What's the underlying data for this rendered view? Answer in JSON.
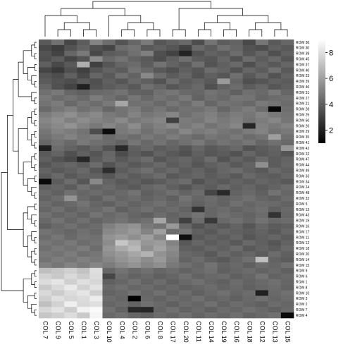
{
  "chart_data": {
    "type": "heatmap",
    "title": "",
    "xlabel": "",
    "ylabel": "",
    "columns": [
      "COL 7",
      "COL 9",
      "COL 5",
      "COL 1",
      "COL 3",
      "COL 10",
      "COL 4",
      "COL 2",
      "COL 6",
      "COL 8",
      "COL 17",
      "COL 20",
      "COL 11",
      "COL 14",
      "COL 19",
      "COL 16",
      "COL 18",
      "COL 12",
      "COL 13",
      "COL 15"
    ],
    "rows": [
      "ROW 36",
      "ROW 30",
      "ROW 38",
      "ROW 45",
      "ROW 37",
      "ROW 40",
      "ROW 23",
      "ROW 39",
      "ROW 46",
      "ROW 31",
      "ROW 27",
      "ROW 21",
      "ROW 28",
      "ROW 25",
      "ROW 50",
      "ROW 26",
      "ROW 29",
      "ROW 35",
      "ROW 41",
      "ROW 42",
      "ROW 22",
      "ROW 47",
      "ROW 44",
      "ROW 49",
      "ROW 33",
      "ROW 34",
      "ROW 24",
      "ROW 48",
      "ROW 32",
      "ROW 5",
      "ROW 13",
      "ROW 43",
      "ROW 19",
      "ROW 16",
      "ROW 17",
      "ROW 11",
      "ROW 12",
      "ROW 18",
      "ROW 20",
      "ROW 14",
      "ROW 15",
      "ROW 9",
      "ROW 6",
      "ROW 1",
      "ROW 8",
      "ROW 10",
      "ROW 3",
      "ROW 2",
      "ROW 7",
      "ROW 4"
    ],
    "value_range": [
      1,
      9
    ],
    "colorscale": {
      "low": "#000000",
      "high": "#ffffff"
    },
    "legend": {
      "placement": "top-right",
      "ticks": [
        2,
        4,
        6,
        8
      ]
    },
    "row_dendrogram": "left",
    "col_dendrogram": "top",
    "values": [
      [
        3.8,
        4.5,
        3.2,
        3.9,
        5.1,
        4.4,
        3.6,
        4.2,
        4.8,
        3.7,
        4.0,
        4.3,
        3.4,
        4.6,
        3.9,
        4.1,
        3.3,
        4.7,
        3.8,
        4.2
      ],
      [
        3.3,
        2.9,
        3.6,
        4.1,
        3.5,
        3.2,
        4.4,
        4.6,
        3.8,
        4.0,
        3.7,
        3.1,
        4.3,
        3.9,
        4.5,
        4.2,
        3.6,
        3.4,
        4.0,
        3.8
      ],
      [
        3.6,
        3.1,
        4.2,
        4.8,
        3.3,
        3.9,
        4.0,
        4.5,
        5.0,
        3.5,
        3.1,
        2.1,
        3.6,
        4.1,
        3.9,
        4.4,
        3.7,
        4.2,
        3.5,
        4.0
      ],
      [
        3.5,
        3.9,
        3.2,
        3.6,
        5.4,
        4.3,
        4.6,
        4.1,
        3.8,
        3.4,
        4.0,
        4.5,
        3.9,
        3.7,
        4.2,
        3.6,
        4.4,
        3.9,
        4.3,
        3.7
      ],
      [
        4.0,
        3.3,
        3.8,
        6.5,
        3.0,
        3.7,
        4.2,
        4.4,
        3.9,
        4.6,
        4.1,
        3.8,
        4.5,
        3.6,
        4.0,
        4.3,
        3.5,
        4.1,
        3.8,
        4.2
      ],
      [
        3.2,
        2.8,
        3.5,
        3.0,
        3.7,
        4.1,
        3.9,
        4.6,
        4.3,
        3.8,
        3.5,
        4.0,
        3.7,
        4.4,
        4.1,
        3.6,
        4.2,
        3.9,
        4.5,
        3.8
      ],
      [
        3.7,
        3.4,
        4.0,
        3.3,
        4.2,
        3.8,
        4.5,
        4.1,
        5.3,
        4.4,
        3.9,
        4.2,
        3.6,
        4.0,
        3.7,
        4.5,
        3.8,
        4.3,
        3.6,
        4.1
      ],
      [
        3.9,
        3.6,
        3.4,
        3.8,
        3.5,
        4.0,
        3.7,
        4.3,
        4.0,
        3.6,
        4.4,
        3.9,
        4.1,
        3.8,
        5.8,
        4.2,
        3.5,
        3.7,
        4.0,
        3.9
      ],
      [
        4.2,
        3.5,
        3.1,
        2.0,
        3.6,
        3.9,
        4.1,
        3.8,
        4.5,
        4.2,
        3.7,
        4.0,
        4.3,
        3.5,
        4.1,
        4.4,
        3.9,
        4.2,
        3.7,
        4.0
      ],
      [
        4.5,
        4.8,
        4.2,
        4.0,
        4.3,
        4.4,
        4.6,
        4.1,
        4.0,
        4.5,
        4.7,
        4.3,
        4.2,
        4.6,
        4.4,
        4.0,
        4.5,
        4.3,
        4.8,
        4.2
      ],
      [
        4.8,
        4.4,
        4.6,
        4.3,
        4.9,
        4.5,
        4.2,
        4.7,
        4.3,
        4.6,
        4.4,
        4.8,
        4.1,
        4.5,
        4.3,
        4.7,
        4.6,
        4.2,
        4.4,
        4.5
      ],
      [
        4.6,
        4.9,
        4.3,
        4.7,
        4.4,
        4.8,
        6.2,
        4.5,
        4.6,
        4.3,
        4.7,
        4.4,
        4.9,
        4.2,
        4.6,
        4.5,
        4.3,
        4.8,
        4.6,
        4.4
      ],
      [
        4.3,
        4.7,
        5.0,
        4.5,
        4.8,
        4.2,
        4.6,
        4.9,
        4.4,
        4.7,
        4.3,
        4.6,
        4.5,
        4.8,
        4.2,
        4.6,
        4.9,
        4.4,
        1.2,
        4.5
      ],
      [
        4.9,
        5.2,
        5.5,
        5.0,
        5.3,
        4.8,
        4.6,
        5.1,
        4.7,
        4.9,
        5.2,
        4.5,
        4.8,
        5.0,
        4.6,
        4.9,
        4.7,
        5.1,
        4.8,
        4.6
      ],
      [
        5.2,
        5.5,
        5.0,
        5.4,
        5.1,
        4.9,
        5.3,
        4.8,
        5.0,
        5.2,
        3.0,
        4.9,
        4.7,
        5.1,
        4.8,
        5.0,
        4.6,
        4.9,
        5.2,
        4.7
      ],
      [
        5.0,
        5.3,
        5.6,
        5.1,
        4.8,
        5.2,
        4.9,
        5.4,
        4.7,
        5.0,
        5.3,
        4.8,
        5.1,
        4.6,
        4.9,
        5.2,
        2.2,
        5.0,
        4.8,
        5.1
      ],
      [
        4.7,
        5.1,
        4.9,
        4.6,
        3.4,
        1.4,
        4.8,
        5.0,
        4.5,
        4.9,
        4.6,
        5.2,
        4.8,
        5.0,
        4.7,
        4.5,
        4.9,
        5.1,
        4.6,
        4.8
      ],
      [
        4.5,
        4.8,
        5.1,
        4.7,
        4.9,
        4.3,
        4.6,
        4.4,
        4.8,
        4.5,
        4.9,
        4.6,
        4.3,
        4.7,
        4.5,
        4.8,
        4.4,
        4.6,
        6.0,
        4.5
      ],
      [
        4.2,
        4.6,
        4.3,
        4.8,
        4.5,
        4.4,
        4.1,
        4.7,
        4.3,
        4.6,
        4.2,
        4.5,
        4.8,
        4.3,
        4.6,
        4.4,
        4.7,
        4.2,
        4.5,
        4.3
      ],
      [
        2.0,
        4.4,
        4.1,
        3.8,
        4.2,
        3.6,
        2.3,
        4.0,
        4.3,
        3.9,
        4.1,
        3.7,
        4.2,
        3.8,
        4.0,
        4.3,
        3.6,
        3.9,
        4.1,
        5.7
      ],
      [
        3.8,
        4.1,
        3.5,
        4.0,
        3.7,
        4.2,
        3.4,
        3.9,
        3.6,
        4.1,
        3.8,
        3.5,
        4.0,
        3.7,
        3.9,
        3.6,
        4.2,
        3.8,
        4.0,
        3.7
      ],
      [
        4.0,
        3.6,
        3.3,
        2.2,
        3.9,
        4.3,
        3.8,
        4.1,
        4.4,
        3.7,
        4.0,
        4.2,
        3.9,
        4.4,
        3.6,
        4.1,
        3.8,
        4.3,
        3.9,
        4.1
      ],
      [
        3.7,
        4.0,
        4.2,
        3.9,
        4.4,
        3.6,
        4.1,
        3.8,
        4.0,
        4.3,
        3.9,
        4.1,
        3.7,
        4.0,
        4.2,
        3.8,
        4.1,
        5.5,
        3.9,
        4.2
      ],
      [
        4.1,
        3.8,
        4.0,
        4.3,
        3.7,
        2.4,
        3.9,
        4.2,
        4.5,
        4.0,
        4.3,
        3.9,
        4.1,
        3.8,
        4.2,
        4.4,
        4.0,
        3.8,
        4.3,
        4.0
      ],
      [
        3.9,
        4.3,
        3.8,
        4.1,
        4.0,
        3.7,
        4.2,
        3.9,
        4.1,
        4.4,
        3.8,
        4.0,
        4.2,
        3.9,
        4.1,
        3.8,
        4.3,
        4.0,
        3.9,
        4.2
      ],
      [
        1.3,
        3.9,
        4.4,
        3.7,
        5.3,
        4.1,
        3.8,
        4.0,
        3.7,
        3.9,
        4.2,
        4.4,
        3.6,
        4.0,
        3.8,
        4.1,
        3.9,
        4.2,
        4.0,
        3.8
      ],
      [
        4.0,
        4.2,
        3.9,
        4.5,
        4.1,
        4.3,
        4.0,
        3.8,
        4.2,
        4.4,
        4.0,
        3.7,
        4.1,
        3.9,
        4.3,
        4.0,
        4.2,
        3.9,
        4.1,
        4.4
      ],
      [
        4.3,
        4.0,
        4.5,
        4.2,
        4.4,
        4.1,
        4.3,
        4.6,
        4.0,
        4.2,
        4.5,
        4.1,
        4.4,
        3.2,
        2.3,
        4.1,
        4.3,
        4.0,
        4.6,
        4.2
      ],
      [
        4.1,
        4.4,
        5.6,
        4.3,
        4.0,
        4.5,
        4.2,
        4.4,
        4.1,
        4.3,
        4.0,
        4.6,
        4.2,
        4.4,
        4.1,
        4.3,
        4.5,
        4.2,
        4.0,
        4.4
      ],
      [
        4.4,
        4.1,
        4.3,
        4.6,
        4.2,
        4.0,
        4.4,
        4.1,
        4.3,
        4.5,
        4.2,
        4.4,
        4.0,
        4.3,
        4.1,
        4.5,
        4.2,
        4.4,
        4.3,
        4.1
      ],
      [
        4.2,
        4.5,
        4.1,
        4.4,
        4.3,
        4.6,
        4.0,
        4.3,
        4.5,
        4.2,
        4.4,
        4.1,
        2.6,
        4.2,
        4.4,
        4.1,
        4.3,
        4.5,
        4.0,
        4.3
      ],
      [
        4.5,
        4.2,
        4.4,
        4.1,
        4.6,
        4.3,
        4.5,
        4.2,
        4.0,
        4.4,
        4.1,
        4.3,
        4.6,
        4.2,
        4.5,
        4.3,
        4.1,
        4.4,
        2.6,
        4.2
      ],
      [
        4.3,
        4.6,
        4.2,
        4.5,
        4.1,
        4.4,
        4.6,
        4.3,
        4.5,
        6.2,
        4.2,
        3.0,
        4.4,
        2.8,
        4.3,
        4.5,
        4.2,
        4.6,
        4.3,
        4.4
      ],
      [
        4.0,
        4.3,
        4.5,
        4.2,
        4.4,
        5.0,
        5.4,
        5.6,
        4.8,
        4.6,
        5.8,
        4.2,
        3.6,
        4.0,
        3.8,
        4.1,
        3.7,
        4.2,
        3.9,
        4.0
      ],
      [
        4.6,
        4.4,
        4.2,
        4.5,
        4.3,
        5.3,
        5.5,
        5.8,
        5.1,
        6.0,
        4.4,
        4.6,
        4.0,
        3.8,
        4.2,
        4.0,
        3.9,
        4.1,
        3.8,
        4.2
      ],
      [
        4.4,
        4.7,
        4.3,
        4.6,
        4.5,
        5.6,
        5.9,
        5.5,
        6.0,
        5.2,
        9.0,
        1.5,
        3.8,
        4.1,
        3.9,
        4.2,
        3.7,
        4.0,
        4.2,
        3.9
      ],
      [
        4.7,
        4.5,
        4.8,
        4.4,
        4.6,
        5.4,
        7.2,
        6.5,
        5.7,
        5.9,
        5.1,
        3.8,
        4.2,
        3.9,
        4.1,
        3.8,
        4.3,
        4.0,
        3.7,
        4.1
      ],
      [
        4.5,
        4.8,
        4.6,
        4.9,
        4.4,
        5.7,
        6.3,
        6.8,
        5.5,
        6.1,
        5.4,
        4.0,
        3.9,
        4.2,
        4.0,
        4.4,
        3.8,
        4.1,
        3.9,
        4.3
      ],
      [
        4.8,
        4.6,
        4.9,
        4.5,
        4.7,
        5.5,
        5.8,
        6.2,
        6.6,
        5.6,
        5.2,
        4.3,
        4.1,
        3.8,
        4.3,
        4.0,
        4.2,
        3.9,
        4.4,
        4.0
      ],
      [
        4.6,
        4.9,
        4.7,
        5.0,
        4.8,
        5.2,
        5.6,
        5.9,
        5.4,
        5.8,
        5.0,
        4.1,
        4.4,
        4.0,
        3.8,
        4.2,
        4.5,
        7.0,
        4.1,
        3.9
      ],
      [
        5.0,
        4.7,
        5.1,
        4.8,
        5.2,
        4.9,
        5.3,
        5.6,
        5.2,
        5.5,
        4.8,
        4.5,
        4.2,
        4.6,
        4.1,
        4.3,
        4.0,
        4.4,
        4.2,
        4.5
      ],
      [
        7.0,
        7.2,
        7.5,
        7.1,
        8.0,
        4.2,
        4.6,
        4.3,
        4.5,
        4.2,
        4.4,
        4.1,
        4.3,
        4.5,
        4.0,
        4.2,
        4.4,
        4.1,
        4.3,
        4.0
      ],
      [
        7.6,
        7.3,
        7.8,
        7.4,
        7.9,
        3.2,
        4.4,
        4.1,
        4.3,
        4.0,
        4.2,
        4.5,
        4.1,
        4.3,
        4.4,
        4.0,
        4.2,
        4.6,
        4.1,
        4.3
      ],
      [
        7.9,
        8.2,
        7.5,
        8.0,
        7.7,
        4.0,
        4.2,
        4.5,
        4.1,
        4.4,
        4.0,
        4.3,
        4.5,
        4.2,
        4.0,
        4.4,
        4.1,
        4.3,
        4.5,
        4.2
      ],
      [
        7.3,
        7.8,
        8.3,
        7.6,
        8.1,
        4.3,
        4.5,
        4.2,
        4.4,
        4.1,
        4.3,
        4.0,
        4.2,
        4.4,
        4.1,
        4.3,
        4.0,
        4.2,
        4.4,
        4.1
      ],
      [
        7.8,
        7.4,
        7.9,
        8.2,
        7.5,
        4.1,
        4.3,
        4.6,
        4.2,
        4.5,
        4.1,
        4.4,
        4.0,
        4.3,
        4.5,
        4.2,
        4.4,
        2.0,
        4.3,
        4.5
      ],
      [
        7.5,
        8.0,
        7.7,
        7.9,
        8.4,
        4.4,
        4.2,
        1.0,
        4.3,
        4.1,
        4.4,
        4.2,
        4.5,
        4.1,
        4.3,
        4.0,
        4.3,
        4.5,
        4.2,
        4.4
      ],
      [
        7.0,
        7.6,
        8.5,
        7.8,
        8.0,
        4.2,
        4.4,
        4.1,
        4.5,
        4.3,
        4.0,
        4.4,
        4.2,
        4.5,
        4.1,
        4.4,
        4.2,
        4.0,
        4.4,
        4.2
      ],
      [
        7.7,
        8.1,
        7.4,
        8.6,
        8.8,
        4.5,
        4.1,
        2.3,
        2.2,
        4.2,
        4.5,
        4.1,
        4.3,
        4.0,
        4.4,
        4.2,
        4.5,
        4.3,
        4.0,
        4.3
      ],
      [
        7.2,
        7.5,
        7.9,
        7.3,
        8.7,
        4.3,
        4.5,
        4.2,
        4.0,
        4.4,
        4.2,
        4.5,
        4.1,
        4.4,
        4.2,
        4.5,
        4.1,
        4.3,
        4.5,
        1.3
      ]
    ]
  }
}
